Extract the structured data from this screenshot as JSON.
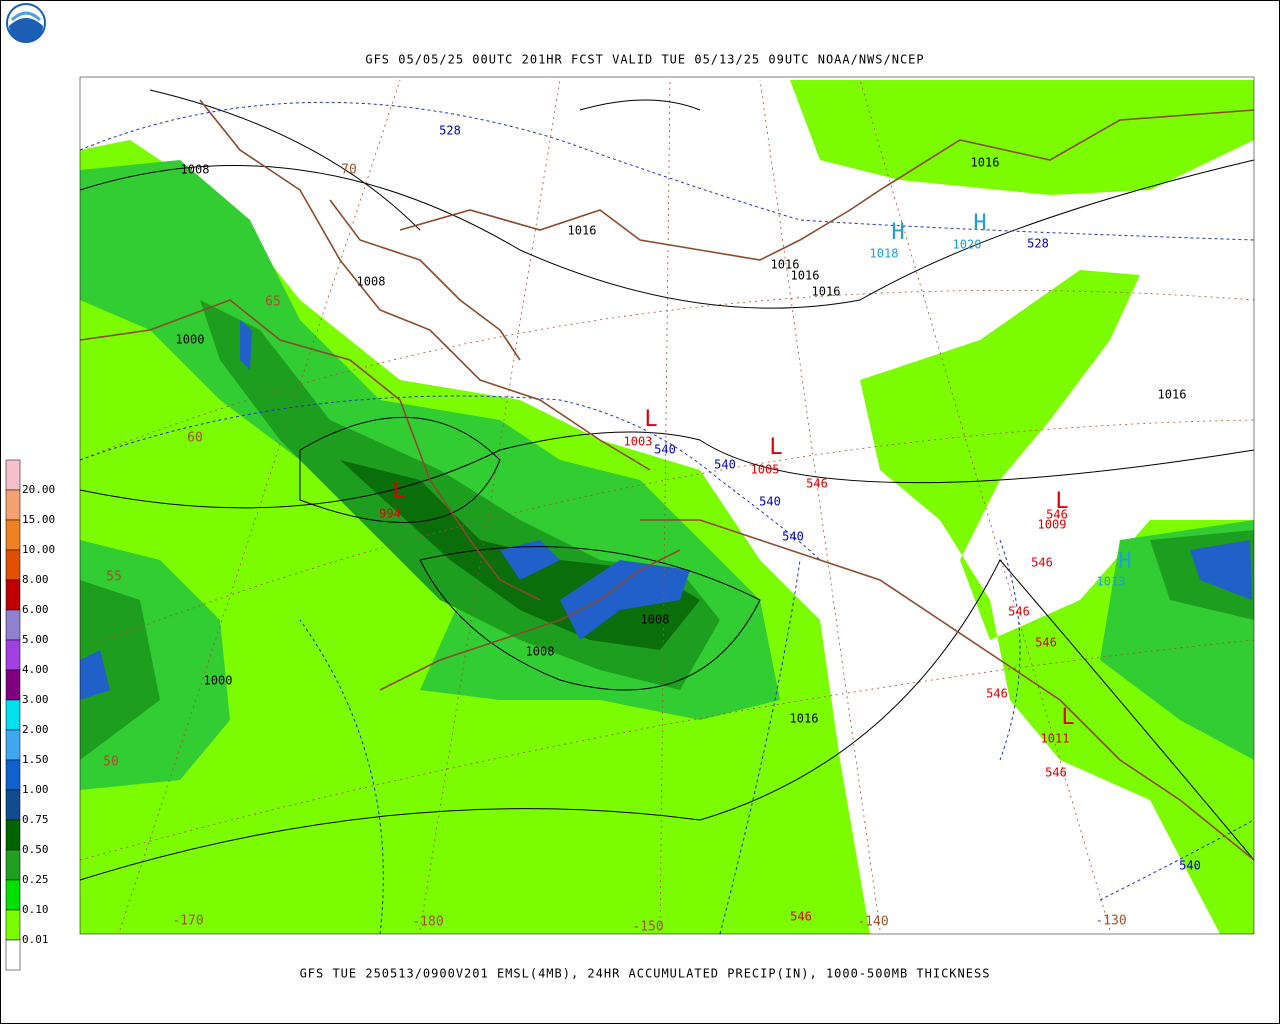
{
  "header": {
    "title": "GFS 05/05/25 00UTC 201HR FCST VALID TUE 05/13/25 09UTC NOAA/NWS/NCEP"
  },
  "footer": {
    "caption": "GFS TUE 250513/0900V201 EMSL(4MB), 24HR ACCUMULATED PRECIP(IN), 1000-500MB THICKNESS"
  },
  "legend": {
    "labels": [
      "20.00",
      "15.00",
      "10.00",
      "8.00",
      "6.00",
      "5.00",
      "4.00",
      "3.00",
      "2.00",
      "1.50",
      "1.00",
      "0.75",
      "0.50",
      "0.25",
      "0.10",
      "0.01"
    ],
    "colors": [
      "#f8c0cc",
      "#f4a070",
      "#f08020",
      "#e05000",
      "#c00000",
      "#9080d0",
      "#a040e0",
      "#800080",
      "#00e0f0",
      "#40a8f0",
      "#1060d0",
      "#104c90",
      "#006400",
      "#20a020",
      "#00e000",
      "#7cfc00",
      "#ffffff"
    ]
  },
  "map": {
    "isobars": [
      "1008",
      "1016",
      "1008",
      "1000",
      "1016",
      "1016",
      "1016",
      "1016",
      "1016",
      "1008",
      "1008",
      "1000",
      "1016"
    ],
    "thickness": [
      "528",
      "528",
      "540",
      "540",
      "540",
      "540",
      "540",
      "546",
      "546",
      "546",
      "546",
      "546",
      "546",
      "546",
      "546"
    ],
    "lows": [
      "L",
      "1003",
      "L",
      "1005",
      "L",
      "994",
      "L",
      "1009",
      "L",
      "1011"
    ],
    "highs": [
      "H",
      "1018",
      "H",
      "1020",
      "H",
      "1013"
    ],
    "graticule": [
      "70",
      "65",
      "60",
      "55",
      "50",
      "-170",
      "-180",
      "-150",
      "-140",
      "-130"
    ]
  }
}
